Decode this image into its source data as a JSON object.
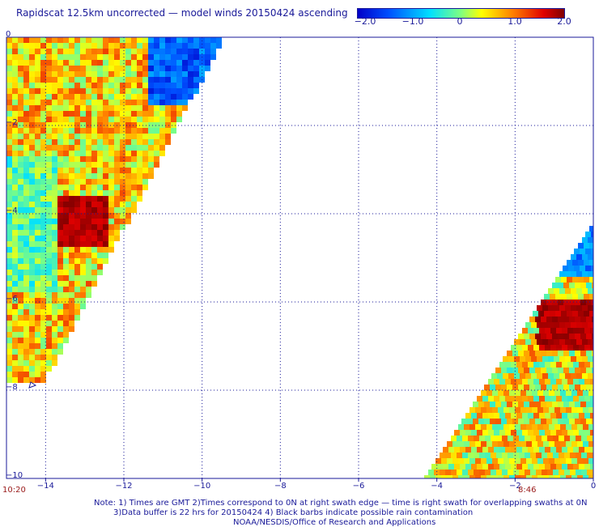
{
  "title": "Rapidscat 12.5km uncorrected — model winds 20150424 ascending",
  "colorbar": {
    "ticks": [
      "−2.0",
      "−1.0",
      "0",
      "1.0",
      "2.0"
    ],
    "tick_values": [
      -2.0,
      -1.0,
      0,
      1.0,
      2.0
    ],
    "colors": [
      "#0000c8",
      "#0050ff",
      "#00e0ff",
      "#80ff80",
      "#ffff00",
      "#ff8000",
      "#e00000",
      "#800000"
    ]
  },
  "axes": {
    "x_ticks": [
      "−14",
      "−12",
      "−10",
      "−8",
      "−6",
      "−4",
      "−2",
      "0"
    ],
    "x_values": [
      -14,
      -12,
      -10,
      -8,
      -6,
      -4,
      -2,
      0
    ],
    "y_ticks": [
      "0",
      "−2",
      "−4",
      "−6",
      "−8",
      "−10"
    ],
    "y_values": [
      0,
      -2,
      -4,
      -6,
      -8,
      -10
    ],
    "xlim": [
      -15,
      0
    ],
    "ylim": [
      -10,
      0
    ]
  },
  "times": {
    "left": "10:20",
    "right": "8:46"
  },
  "notes": [
    "Note: 1) Times are GMT 2)Times correspond to 0N at right swath edge — time is right swath for overlapping swaths at 0N",
    "3)Data buffer is 22 hrs for 20150424 4) Black barbs indicate possible rain contamination",
    "NOAA/NESDIS/Office of Research and Applications"
  ]
}
